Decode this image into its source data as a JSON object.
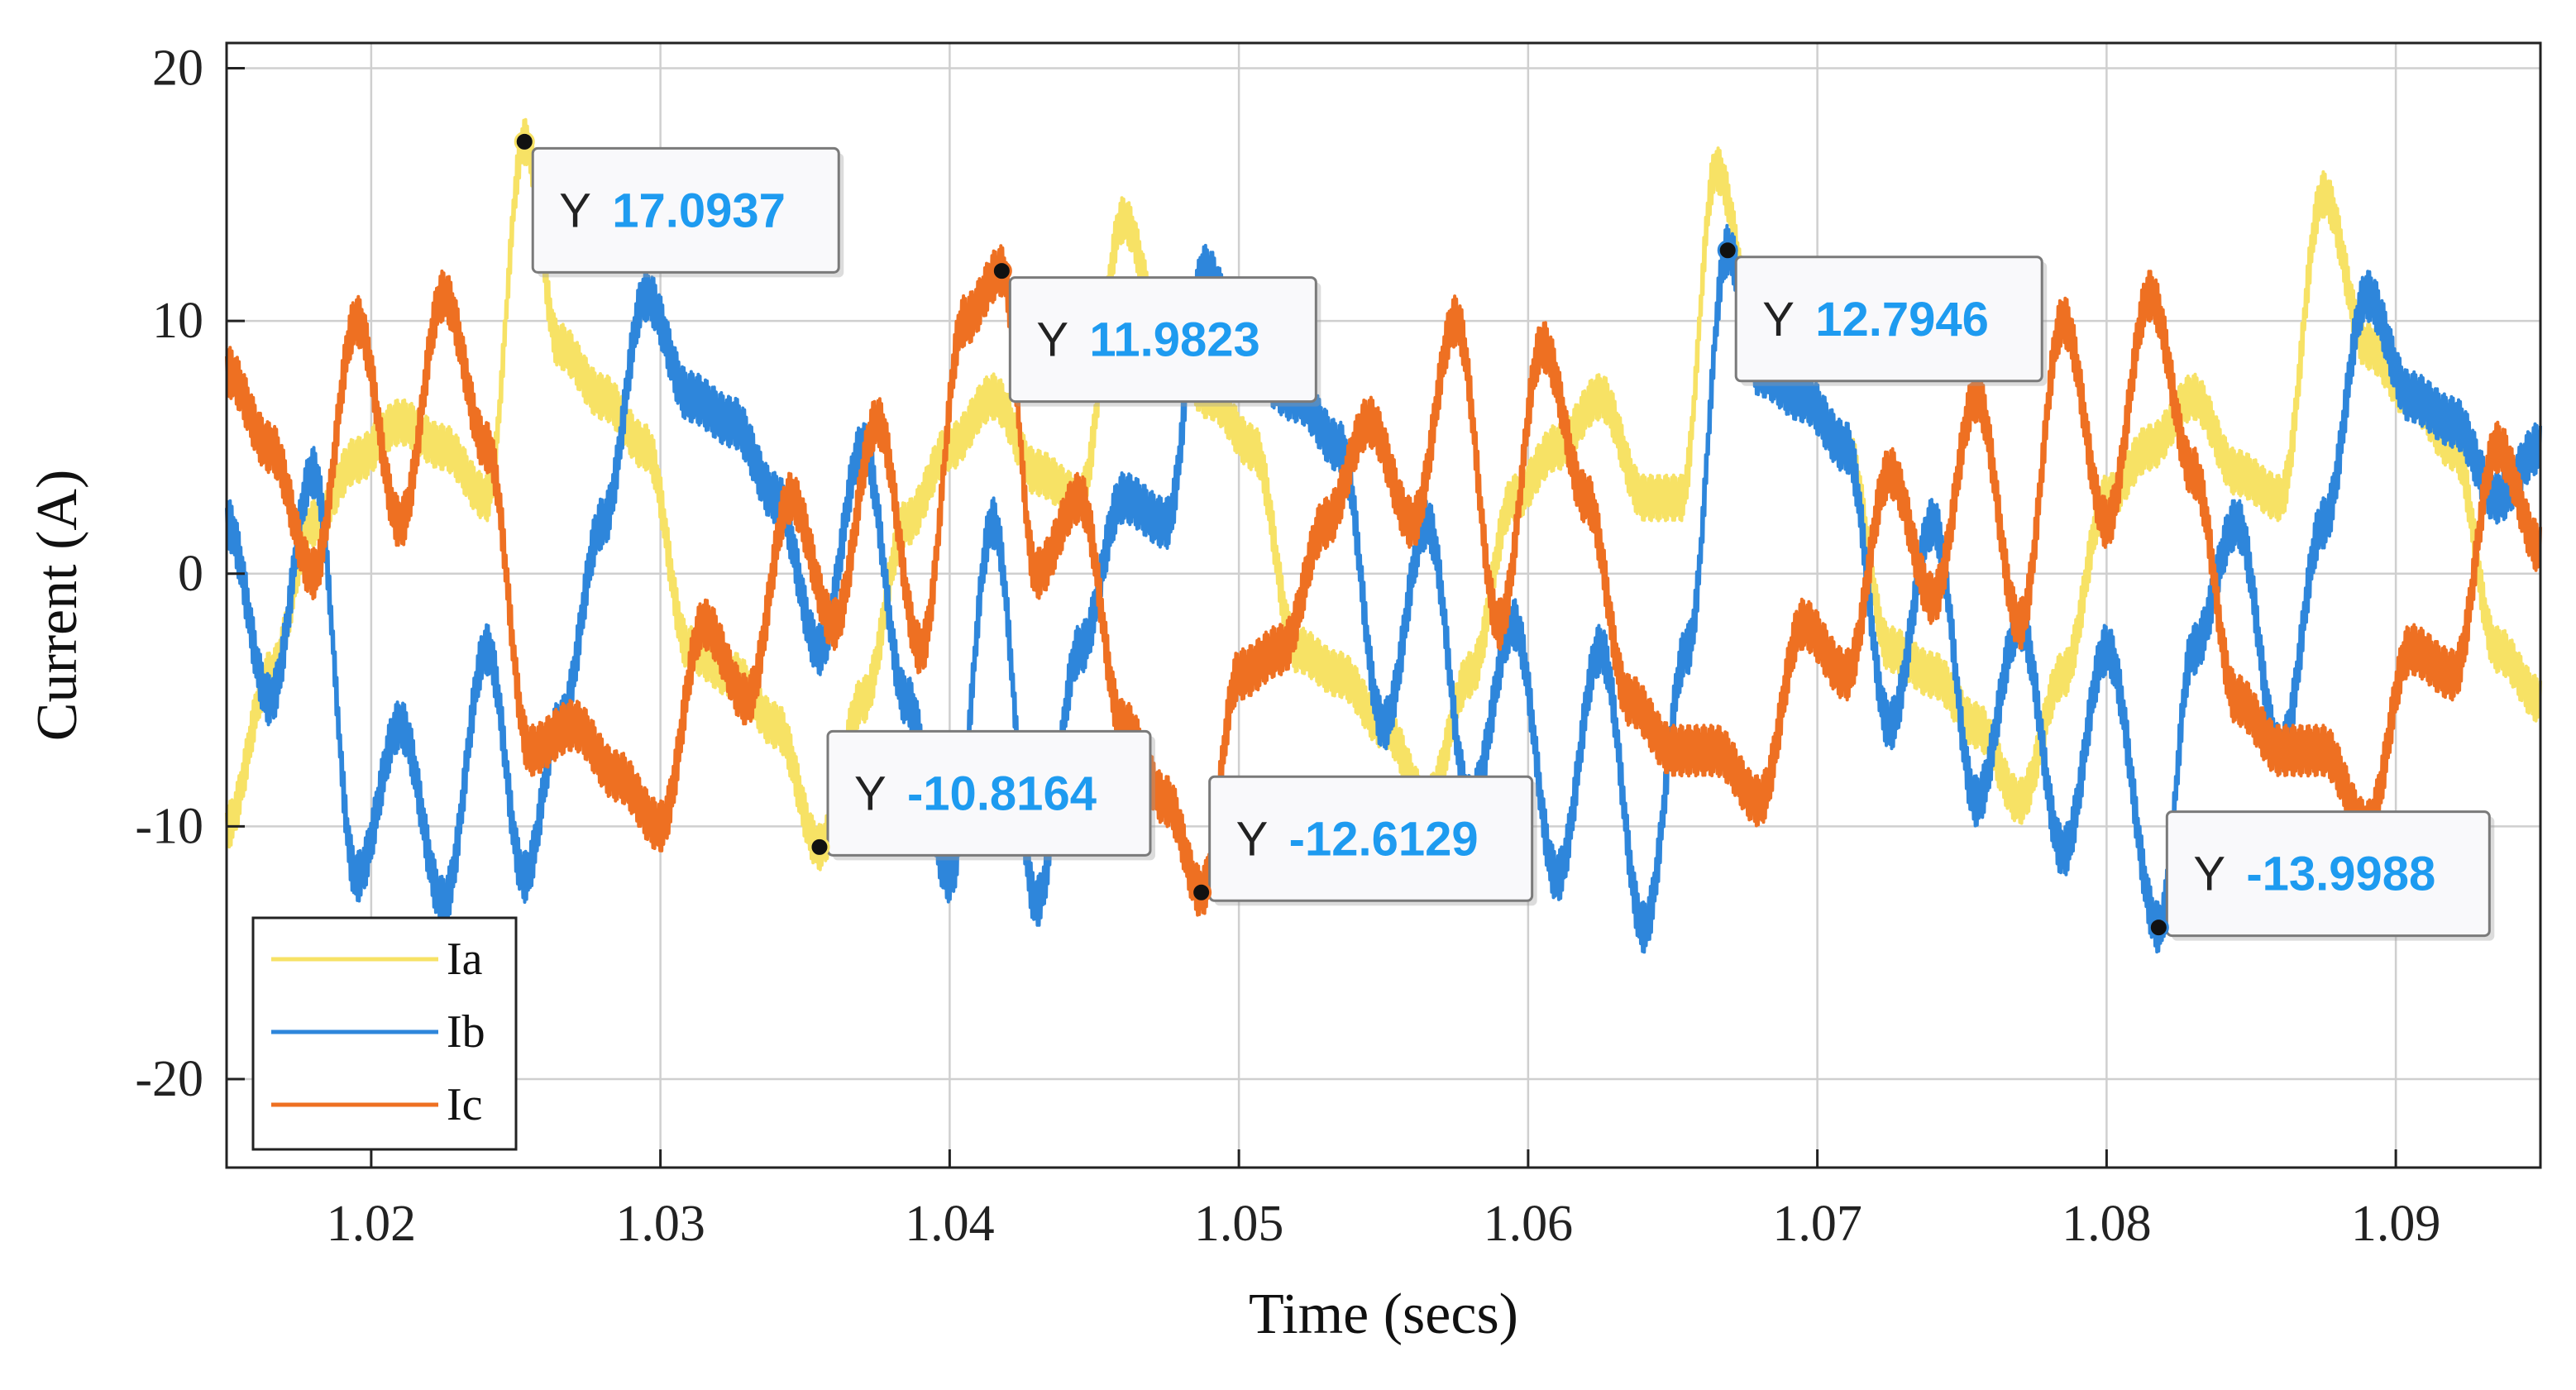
{
  "chart_data": {
    "type": "line",
    "title": "",
    "xlabel": "Time (secs)",
    "ylabel": "Current (A)",
    "xlim": [
      1.015,
      1.095
    ],
    "ylim": [
      -23.5,
      21
    ],
    "xticks": [
      1.02,
      1.03,
      1.04,
      1.05,
      1.06,
      1.07,
      1.08,
      1.09
    ],
    "xtick_labels": [
      "1.02",
      "1.03",
      "1.04",
      "1.05",
      "1.06",
      "1.07",
      "1.08",
      "1.09"
    ],
    "yticks": [
      20,
      10,
      0,
      -10,
      -20
    ],
    "ytick_labels": [
      "20",
      "10",
      "0",
      "-10",
      "-20"
    ],
    "grid": true,
    "legend_position": "bottom-left",
    "series": [
      {
        "name": "Ia",
        "color": "#F7E265",
        "fundamental_hz": 50,
        "ripple_amplitude": 0.9,
        "x": [
          1.015,
          1.0165,
          1.018,
          1.0195,
          1.021,
          1.0225,
          1.024,
          1.0253,
          1.0265,
          1.028,
          1.0295,
          1.031,
          1.0325,
          1.034,
          1.0355,
          1.037,
          1.0385,
          1.04,
          1.0415,
          1.043,
          1.0445,
          1.046,
          1.0475,
          1.049,
          1.0505,
          1.052,
          1.0535,
          1.055,
          1.0565,
          1.058,
          1.0595,
          1.061,
          1.0625,
          1.064,
          1.0653,
          1.0665,
          1.068,
          1.0695,
          1.071,
          1.0725,
          1.074,
          1.0755,
          1.077,
          1.0785,
          1.08,
          1.0815,
          1.083,
          1.0845,
          1.086,
          1.0875,
          1.089,
          1.0905,
          1.092,
          1.0935,
          1.095
        ],
        "values": [
          -10,
          -4,
          2,
          4.5,
          6,
          5,
          3,
          17.0937,
          9,
          7,
          5,
          -3,
          -4,
          -6,
          -10.8164,
          -5,
          2,
          5,
          7,
          4,
          3,
          14,
          9,
          7,
          5,
          -3,
          -4,
          -6,
          -9,
          -4,
          3,
          5,
          7,
          3,
          3,
          16,
          9,
          7,
          5,
          -3,
          -4,
          -6,
          -9,
          -4,
          3,
          5,
          7,
          4,
          3,
          15,
          9,
          7,
          5,
          -3,
          -5
        ]
      },
      {
        "name": "Ib",
        "color": "#2E86DB",
        "fundamental_hz": 50,
        "ripple_amplitude": 1.0,
        "x": [
          1.015,
          1.0165,
          1.018,
          1.0195,
          1.021,
          1.0225,
          1.024,
          1.0253,
          1.0265,
          1.028,
          1.0295,
          1.031,
          1.0325,
          1.034,
          1.0355,
          1.037,
          1.0385,
          1.04,
          1.0415,
          1.043,
          1.0445,
          1.046,
          1.0475,
          1.0488,
          1.0505,
          1.052,
          1.0535,
          1.055,
          1.0565,
          1.058,
          1.0595,
          1.061,
          1.0625,
          1.064,
          1.0655,
          1.0669,
          1.068,
          1.0695,
          1.071,
          1.0725,
          1.074,
          1.0755,
          1.077,
          1.0785,
          1.08,
          1.0818,
          1.083,
          1.0845,
          1.086,
          1.0875,
          1.089,
          1.0905,
          1.092,
          1.0935,
          1.095
        ],
        "values": [
          2,
          -5,
          4,
          -12,
          -6,
          -13,
          -3,
          -12,
          -6,
          2,
          11,
          7,
          6,
          3,
          -3,
          5,
          -5,
          -12,
          2,
          -13,
          -3,
          3,
          2,
          12,
          8,
          7,
          5,
          -6,
          2,
          -9,
          -2,
          -12,
          -3,
          -14,
          -3,
          12.7946,
          8,
          7,
          5,
          -6,
          2,
          -9,
          -2,
          -11,
          -3,
          -13.9988,
          -3,
          2,
          -7,
          2,
          11,
          7,
          6,
          3,
          5
        ]
      },
      {
        "name": "Ic",
        "color": "#EE7022",
        "fundamental_hz": 50,
        "ripple_amplitude": 1.0,
        "x": [
          1.015,
          1.0165,
          1.018,
          1.0195,
          1.021,
          1.0225,
          1.024,
          1.0255,
          1.027,
          1.0285,
          1.03,
          1.0315,
          1.033,
          1.0345,
          1.036,
          1.0375,
          1.039,
          1.0405,
          1.0418,
          1.043,
          1.0445,
          1.046,
          1.0475,
          1.0487,
          1.05,
          1.0515,
          1.053,
          1.0545,
          1.056,
          1.0575,
          1.059,
          1.0605,
          1.062,
          1.0635,
          1.065,
          1.0665,
          1.068,
          1.0695,
          1.071,
          1.0725,
          1.074,
          1.0755,
          1.077,
          1.0785,
          1.08,
          1.0815,
          1.083,
          1.0845,
          1.086,
          1.0875,
          1.089,
          1.0905,
          1.092,
          1.0935,
          1.095
        ],
        "values": [
          8,
          5,
          0,
          10,
          2,
          11,
          5,
          -7,
          -6,
          -8,
          -10,
          -2,
          -5,
          3,
          -2,
          6,
          -3,
          10,
          11.9823,
          0,
          3,
          -6,
          -9,
          -12.6129,
          -4,
          -3,
          2,
          6,
          2,
          10,
          -2,
          9,
          3,
          -5,
          -7,
          -7,
          -9,
          -2,
          -4,
          4,
          -1,
          7,
          -2,
          10,
          2,
          11,
          4,
          -5,
          -7,
          -7,
          -10,
          -3,
          -4,
          5,
          1
        ]
      }
    ],
    "datatips": [
      {
        "series": "Ia",
        "x": 1.0253,
        "prefix": "Y",
        "label": "17.0937"
      },
      {
        "series": "Ic",
        "x": 1.0418,
        "prefix": "Y",
        "label": "11.9823"
      },
      {
        "series": "Ib",
        "x": 1.0669,
        "prefix": "Y",
        "label": "12.7946"
      },
      {
        "series": "Ia",
        "x": 1.0355,
        "prefix": "Y",
        "label": "-10.8164"
      },
      {
        "series": "Ic",
        "x": 1.0487,
        "prefix": "Y",
        "label": "-12.6129"
      },
      {
        "series": "Ib",
        "x": 1.0818,
        "prefix": "Y",
        "label": "-13.9988"
      }
    ],
    "datatip_value_color": "#1E9BF0"
  }
}
